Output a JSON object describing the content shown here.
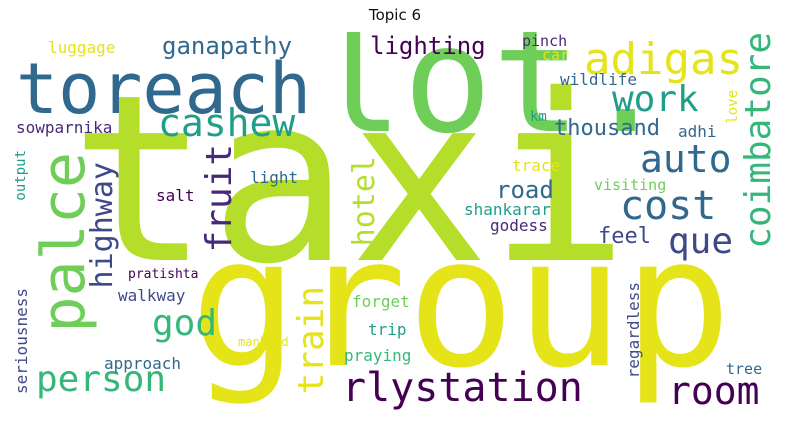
{
  "title": "Topic 6",
  "colors": {
    "yellow": "#e5e419",
    "lime": "#b5de2b",
    "green_light": "#6ece58",
    "green": "#35b779",
    "teal": "#1f9e89",
    "blue": "#31688e",
    "navy": "#3e4989",
    "purple": "#482878",
    "dark": "#440154"
  },
  "words": [
    {
      "id": "taxi",
      "text": "taxi"
    },
    {
      "id": "group",
      "text": "group"
    },
    {
      "id": "lot",
      "text": "lot."
    },
    {
      "id": "toreach",
      "text": "toreach"
    },
    {
      "id": "palce",
      "text": "palce"
    },
    {
      "id": "adigas",
      "text": "adigas"
    },
    {
      "id": "cashew",
      "text": "cashew"
    },
    {
      "id": "work",
      "text": "work"
    },
    {
      "id": "coimbatore",
      "text": "coimbatore"
    },
    {
      "id": "ganapathy",
      "text": "ganapathy"
    },
    {
      "id": "lighting",
      "text": "lighting"
    },
    {
      "id": "luggage",
      "text": "luggage"
    },
    {
      "id": "pinch",
      "text": "pinch"
    },
    {
      "id": "car",
      "text": "car"
    },
    {
      "id": "wildlife",
      "text": "wildlife"
    },
    {
      "id": "love",
      "text": "love"
    },
    {
      "id": "km",
      "text": "km"
    },
    {
      "id": "adhi",
      "text": "adhi"
    },
    {
      "id": "sowparnika",
      "text": "sowparnika"
    },
    {
      "id": "thousand",
      "text": "thousand"
    },
    {
      "id": "auto",
      "text": "auto"
    },
    {
      "id": "fruit",
      "text": "fruit"
    },
    {
      "id": "hotel",
      "text": "hotel"
    },
    {
      "id": "highway",
      "text": "highway"
    },
    {
      "id": "cost",
      "text": "cost"
    },
    {
      "id": "que",
      "text": "que"
    },
    {
      "id": "trace",
      "text": "trace"
    },
    {
      "id": "visiting",
      "text": "visiting"
    },
    {
      "id": "road",
      "text": "road"
    },
    {
      "id": "shankarar",
      "text": "shankarar"
    },
    {
      "id": "godess",
      "text": "godess"
    },
    {
      "id": "feel",
      "text": "feel"
    },
    {
      "id": "light",
      "text": "light"
    },
    {
      "id": "salt",
      "text": "salt"
    },
    {
      "id": "output",
      "text": "output"
    },
    {
      "id": "god",
      "text": "god"
    },
    {
      "id": "train",
      "text": "train"
    },
    {
      "id": "person",
      "text": "person"
    },
    {
      "id": "rlystation",
      "text": "rlystation"
    },
    {
      "id": "room",
      "text": "room"
    },
    {
      "id": "pratishta",
      "text": "pratishta"
    },
    {
      "id": "walkway",
      "text": "walkway"
    },
    {
      "id": "forget",
      "text": "forget"
    },
    {
      "id": "trip",
      "text": "trip"
    },
    {
      "id": "regardless",
      "text": "regardless"
    },
    {
      "id": "seriousness",
      "text": "seriousness"
    },
    {
      "id": "approach",
      "text": "approach"
    },
    {
      "id": "mankind",
      "text": "mankind"
    },
    {
      "id": "praying",
      "text": "praying"
    },
    {
      "id": "tree",
      "text": "tree"
    }
  ]
}
